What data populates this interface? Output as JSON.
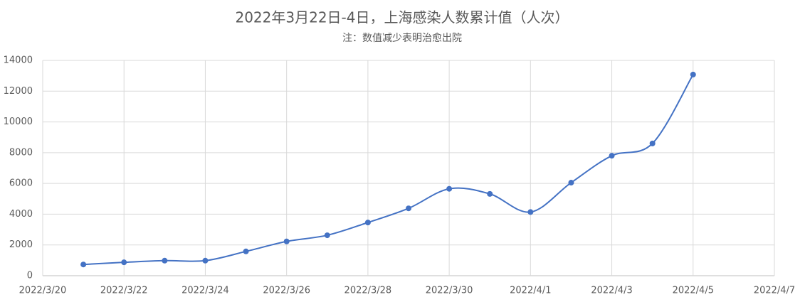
{
  "chart_data": {
    "type": "line",
    "title": "2022年3月22日-4日，上海感染人数累计值（人次）",
    "subtitle": "注：数值减少表明治愈出院",
    "x": [
      "2022/3/21",
      "2022/3/22",
      "2022/3/23",
      "2022/3/24",
      "2022/3/25",
      "2022/3/26",
      "2022/3/27",
      "2022/3/28",
      "2022/3/29",
      "2022/3/30",
      "2022/3/31",
      "2022/4/1",
      "2022/4/2",
      "2022/4/3",
      "2022/4/4",
      "2022/4/5"
    ],
    "values": [
      730,
      870,
      980,
      980,
      1580,
      2230,
      2630,
      3460,
      4380,
      5650,
      5320,
      4140,
      6050,
      7800,
      8600,
      13080
    ],
    "color": "#4472c4",
    "smooth": true,
    "xlim": [
      "2022/3/20",
      "2022/4/7"
    ],
    "xticks": [
      "2022/3/20",
      "2022/3/22",
      "2022/3/24",
      "2022/3/26",
      "2022/3/28",
      "2022/3/30",
      "2022/4/1",
      "2022/4/3",
      "2022/4/5",
      "2022/4/7"
    ],
    "ylim": [
      0,
      14000
    ],
    "yticks": [
      0,
      2000,
      4000,
      6000,
      8000,
      10000,
      12000,
      14000
    ],
    "grid": true
  }
}
